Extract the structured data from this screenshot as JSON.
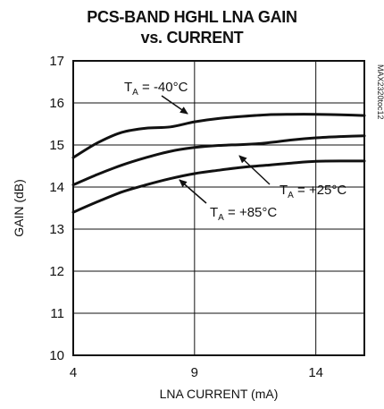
{
  "chart_data": {
    "type": "line",
    "title_line1": "PCS-BAND HGHL LNA GAIN",
    "title_line2": "vs. CURRENT",
    "xlabel": "LNA CURRENT (mA)",
    "ylabel": "GAIN (dB)",
    "chart_id": "MAX2320toc12",
    "xlim": [
      4,
      16
    ],
    "ylim": [
      10,
      17
    ],
    "x_ticks": [
      4,
      9,
      14
    ],
    "y_ticks": [
      10,
      11,
      12,
      13,
      14,
      15,
      16,
      17
    ],
    "grid": true,
    "series": [
      {
        "name": "TA = -40°C",
        "label_main": "T",
        "label_sub": "A",
        "label_rest": " = -40°C",
        "x": [
          4,
          5,
          6,
          7,
          8,
          9,
          10,
          11,
          12,
          13,
          14,
          15,
          16
        ],
        "y": [
          14.7,
          15.05,
          15.3,
          15.4,
          15.43,
          15.55,
          15.63,
          15.68,
          15.72,
          15.73,
          15.73,
          15.72,
          15.7
        ]
      },
      {
        "name": "TA = +25°C",
        "label_main": "T",
        "label_sub": "A",
        "label_rest": " = +25°C",
        "x": [
          4,
          5,
          6,
          7,
          8,
          9,
          10,
          11,
          12,
          13,
          14,
          15,
          16
        ],
        "y": [
          14.05,
          14.3,
          14.52,
          14.7,
          14.85,
          14.94,
          14.99,
          15.01,
          15.05,
          15.12,
          15.17,
          15.2,
          15.22
        ]
      },
      {
        "name": "TA = +85°C",
        "label_main": "T",
        "label_sub": "A",
        "label_rest": " = +85°C",
        "x": [
          4,
          5,
          6,
          7,
          8,
          9,
          10,
          11,
          12,
          13,
          14,
          15,
          16
        ],
        "y": [
          13.4,
          13.65,
          13.88,
          14.05,
          14.2,
          14.32,
          14.4,
          14.47,
          14.52,
          14.57,
          14.61,
          14.62,
          14.62
        ]
      }
    ]
  }
}
